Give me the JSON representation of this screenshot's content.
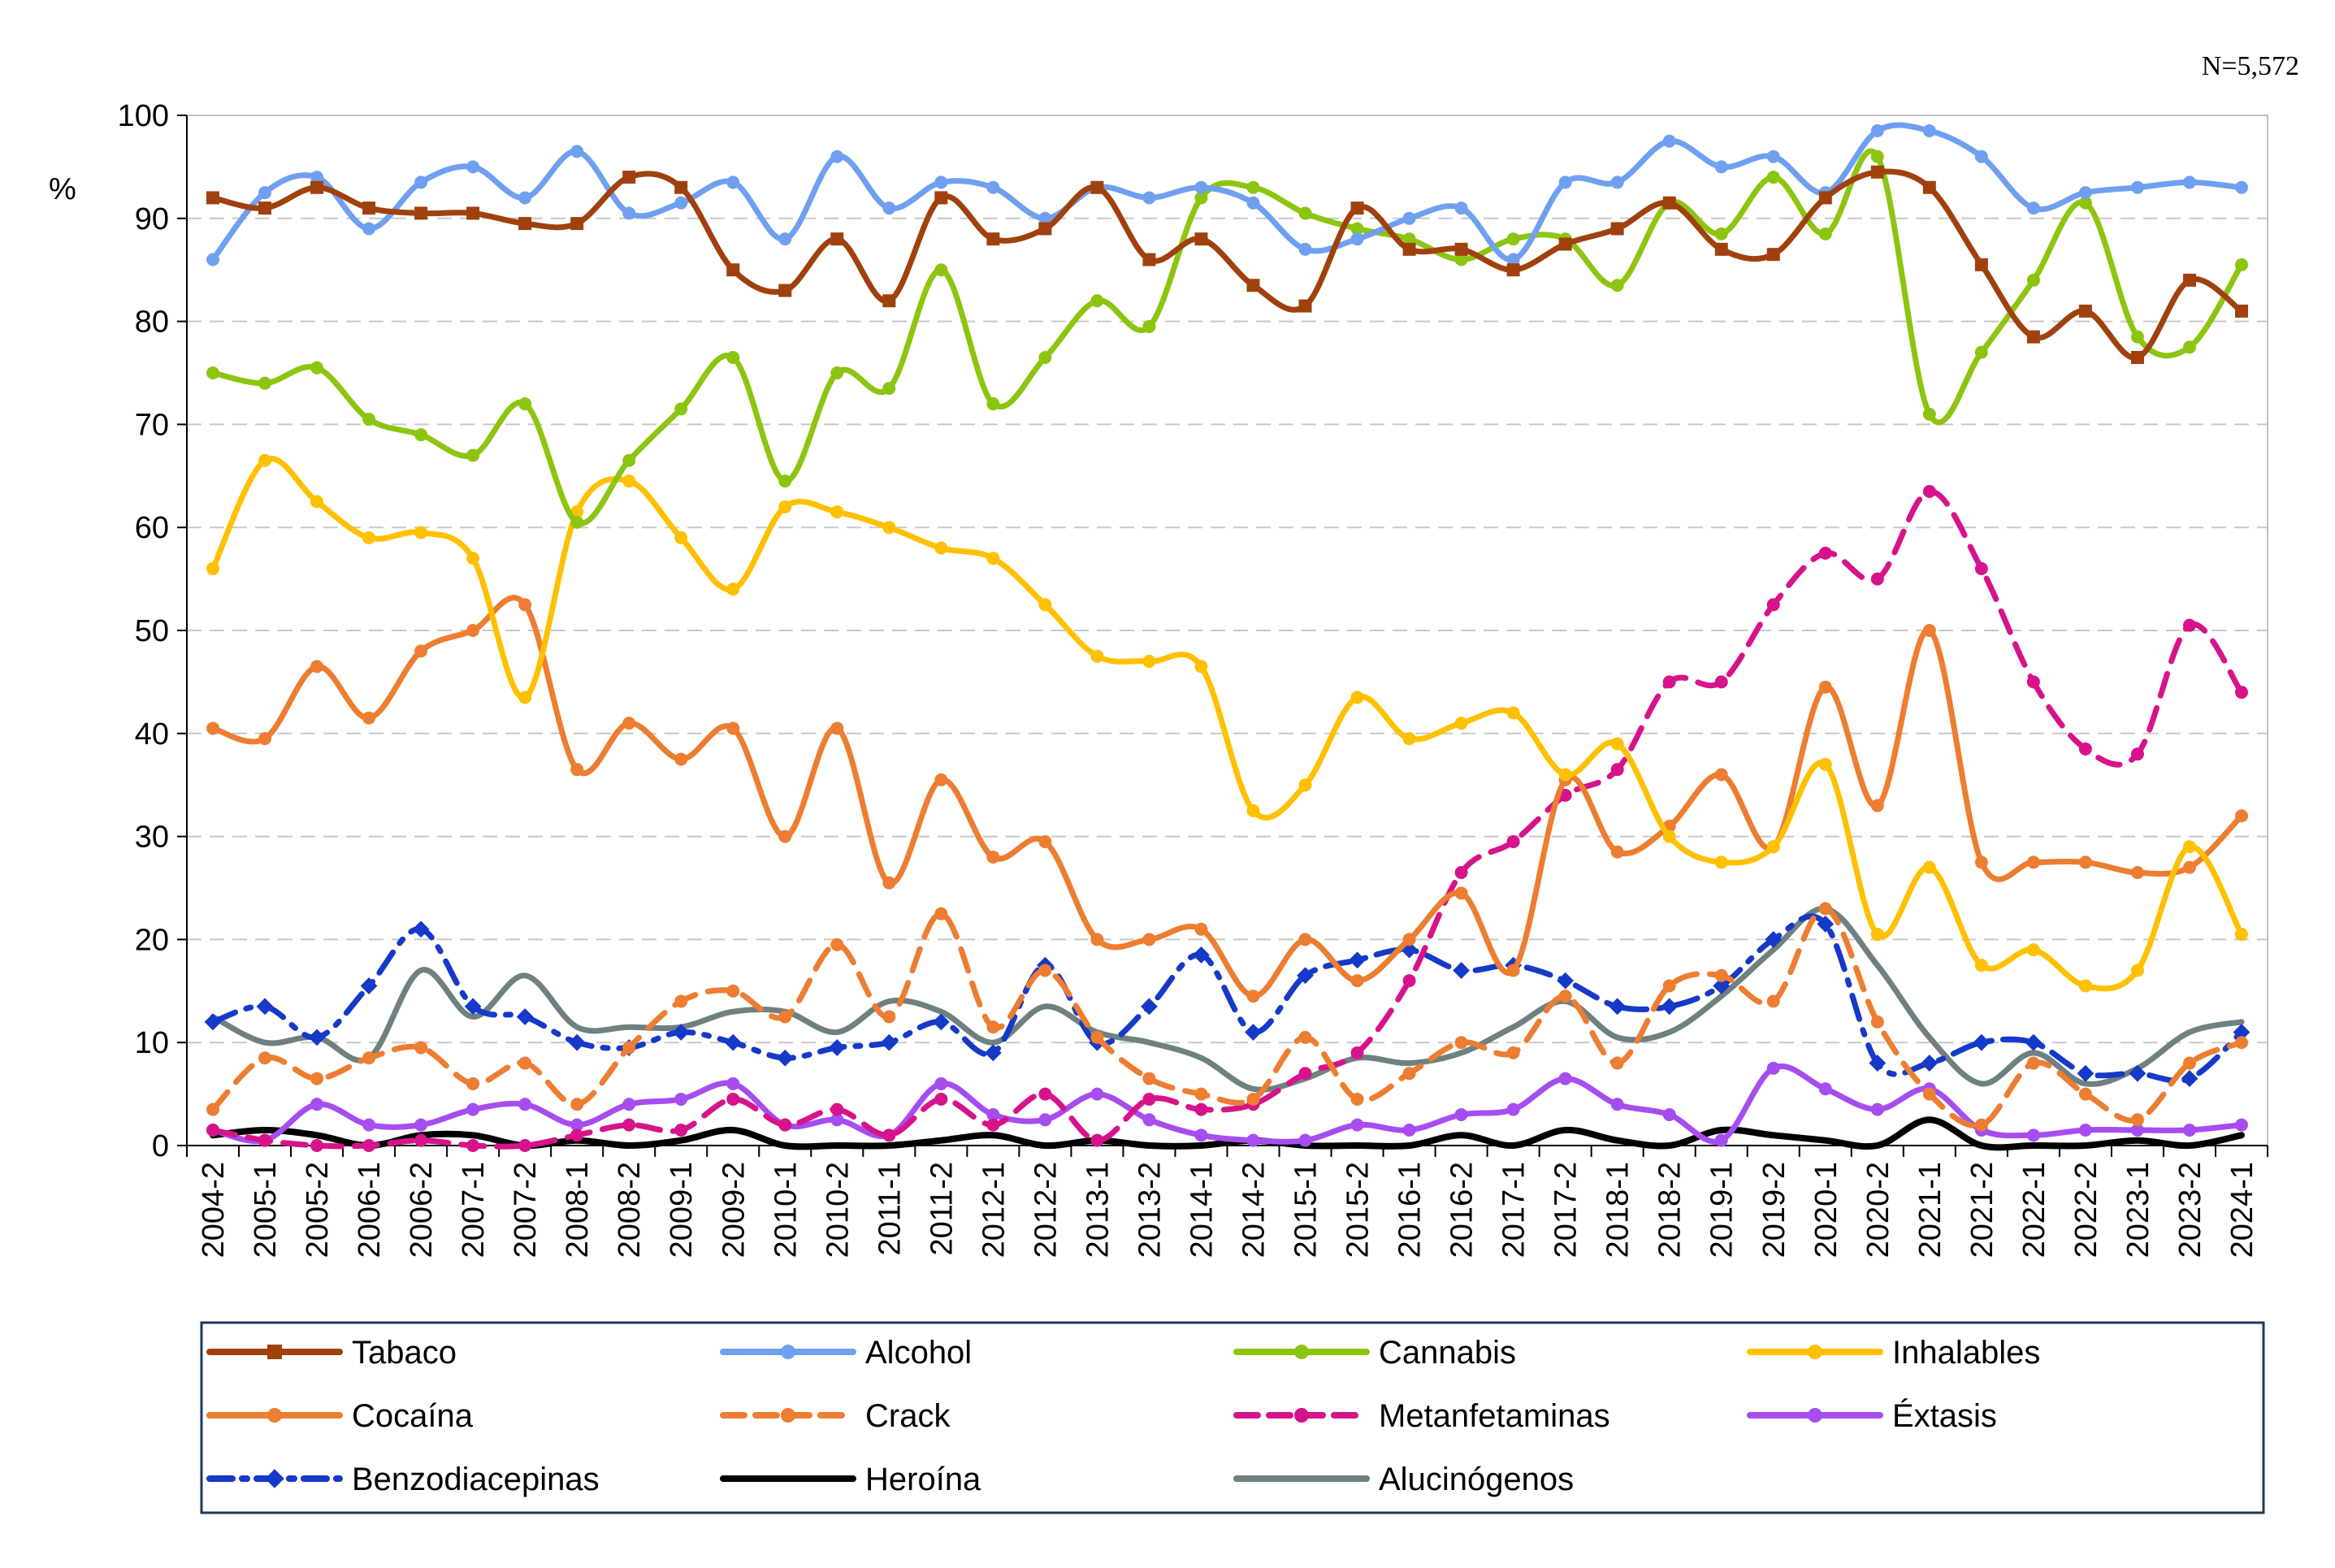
{
  "note": "N=5,572",
  "chart_data": {
    "type": "line",
    "title": "",
    "xlabel": "",
    "ylabel": "%",
    "ylim": [
      0,
      100
    ],
    "yticks": [
      0,
      10,
      20,
      30,
      40,
      50,
      60,
      70,
      80,
      90,
      100
    ],
    "grid": true,
    "legend_position": "bottom",
    "categories": [
      "2004-2",
      "2005-1",
      "2005-2",
      "2006-1",
      "2006-2",
      "2007-1",
      "2007-2",
      "2008-1",
      "2008-2",
      "2009-1",
      "2009-2",
      "2010-1",
      "2010-2",
      "2011-1",
      "2011-2",
      "2012-1",
      "2012-2",
      "2013-1",
      "2013-2",
      "2014-1",
      "2014-2",
      "2015-1",
      "2015-2",
      "2016-1",
      "2016-2",
      "2017-1",
      "2017-2",
      "2018-1",
      "2018-2",
      "2019-1",
      "2019-2",
      "2020-1",
      "2020-2",
      "2021-1",
      "2021-2",
      "2022-1",
      "2022-2",
      "2023-1",
      "2023-2",
      "2024-1"
    ],
    "series": [
      {
        "name": "Tabaco",
        "color": "#A0410D",
        "dash": "solid",
        "marker": "square",
        "values": [
          92,
          91,
          93,
          91,
          90.5,
          90.5,
          89.5,
          89.5,
          94,
          93,
          85,
          83,
          88,
          82,
          92,
          88,
          89,
          93,
          86,
          88,
          83.5,
          81.5,
          91,
          87,
          87,
          85,
          87.5,
          89,
          91.5,
          87,
          86.5,
          92,
          94.5,
          93,
          85.5,
          78.5,
          81,
          76.5,
          84,
          81
        ]
      },
      {
        "name": "Alcohol",
        "color": "#6FA0F0",
        "dash": "solid",
        "marker": "circle",
        "values": [
          86,
          92.5,
          94,
          89,
          93.5,
          95,
          92,
          96.5,
          90.5,
          91.5,
          93.5,
          88,
          96,
          91,
          93.5,
          93,
          90,
          93,
          92,
          93,
          91.5,
          87,
          88,
          90,
          91,
          86,
          93.5,
          93.5,
          97.5,
          95,
          96,
          92.5,
          98.5,
          98.5,
          96,
          91,
          92.5,
          93,
          93.5,
          93
        ]
      },
      {
        "name": "Cannabis",
        "color": "#8CC510",
        "dash": "solid",
        "marker": "circle",
        "values": [
          75,
          74,
          75.5,
          70.5,
          69,
          67,
          72,
          60.5,
          66.5,
          71.5,
          76.5,
          64.5,
          75,
          73.5,
          85,
          72,
          76.5,
          82,
          79.5,
          92,
          93,
          90.5,
          89,
          88,
          86,
          88,
          88,
          83.5,
          91.5,
          88.5,
          94,
          88.5,
          96,
          71,
          77,
          84,
          91.5,
          78.5,
          77.5,
          85.5
        ]
      },
      {
        "name": "Inhalables",
        "color": "#FFC000",
        "dash": "solid",
        "marker": "circle",
        "values": [
          56,
          66.5,
          62.5,
          59,
          59.5,
          57,
          43.5,
          61.5,
          64.5,
          59,
          54,
          62,
          61.5,
          60,
          58,
          57,
          52.5,
          47.5,
          47,
          46.5,
          32.5,
          35,
          43.5,
          39.5,
          41,
          42,
          36,
          39,
          30,
          27.5,
          29,
          37,
          20.5,
          27,
          17.5,
          19,
          15.5,
          17,
          29,
          20.5
        ]
      },
      {
        "name": "Cocaína",
        "color": "#ED7D31",
        "dash": "solid",
        "marker": "circle",
        "values": [
          40.5,
          39.5,
          46.5,
          41.5,
          48,
          50,
          52.5,
          36.5,
          41,
          37.5,
          40.5,
          30,
          40.5,
          25.5,
          35.5,
          28,
          29.5,
          20,
          20,
          21,
          14.5,
          20,
          16,
          20,
          24.5,
          17,
          35.5,
          28.5,
          31,
          36,
          29,
          44.5,
          33,
          50,
          27.5,
          27.5,
          27.5,
          26.5,
          27,
          32
        ]
      },
      {
        "name": "Crack",
        "color": "#ED7D31",
        "dash": "dash",
        "marker": "circle",
        "values": [
          3.5,
          8.5,
          6.5,
          8.5,
          9.5,
          6,
          8,
          4,
          9.5,
          14,
          15,
          12.5,
          19.5,
          12.5,
          22.5,
          11.5,
          17,
          10.5,
          6.5,
          5,
          4.5,
          10.5,
          4.5,
          7,
          10,
          9,
          14.5,
          8,
          15.5,
          16.5,
          14,
          23,
          12,
          5,
          2,
          8,
          5,
          2.5,
          8,
          10
        ]
      },
      {
        "name": "Metanfetaminas",
        "color": "#D6138A",
        "dash": "dash",
        "marker": "circle",
        "values": [
          1.5,
          0.5,
          0,
          0,
          0.5,
          0,
          0,
          1,
          2,
          1.5,
          4.5,
          2,
          3.5,
          1,
          4.5,
          2,
          5,
          0.5,
          4.5,
          3.5,
          4,
          7,
          9,
          16,
          26.5,
          29.5,
          34,
          36.5,
          45,
          45,
          52.5,
          57.5,
          55,
          63.5,
          56,
          45,
          38.5,
          38,
          50.5,
          44
        ]
      },
      {
        "name": "Éxtasis",
        "color": "#A64DF0",
        "dash": "solid",
        "marker": "circle",
        "values": [
          1.5,
          0.5,
          4,
          2,
          2,
          3.5,
          4,
          2,
          4,
          4.5,
          6,
          2,
          2.5,
          1,
          6,
          3,
          2.5,
          5,
          2.5,
          1,
          0.5,
          0.5,
          2,
          1.5,
          3,
          3.5,
          6.5,
          4,
          3,
          0.5,
          7.5,
          5.5,
          3.5,
          5.5,
          1.5,
          1,
          1.5,
          1.5,
          1.5,
          2
        ]
      },
      {
        "name": "Benzodiacepinas",
        "color": "#1539C8",
        "dash": "dashdot",
        "marker": "diamond",
        "values": [
          12,
          13.5,
          10.5,
          15.5,
          21,
          13.5,
          12.5,
          10,
          9.5,
          11,
          10,
          8.5,
          9.5,
          10,
          12,
          9,
          17.5,
          10,
          13.5,
          18.5,
          11,
          16.5,
          18,
          19,
          17,
          17.5,
          16,
          13.5,
          13.5,
          15.5,
          20,
          21.5,
          8,
          8,
          10,
          10,
          7,
          7,
          6.5,
          11
        ]
      },
      {
        "name": "Heroína",
        "color": "#000000",
        "dash": "solid",
        "marker": "none",
        "values": [
          1,
          1.5,
          1,
          0,
          1,
          1,
          0,
          0.5,
          0,
          0.5,
          1.5,
          0,
          0,
          0,
          0.5,
          1,
          0,
          0.5,
          0,
          0,
          0.5,
          0,
          0,
          0,
          1,
          0,
          1.5,
          0.5,
          0,
          1.5,
          1,
          0.5,
          0,
          2.5,
          0,
          0,
          0,
          0.5,
          0,
          1
        ]
      },
      {
        "name": "Alucinógenos",
        "color": "#6E8080",
        "dash": "solid",
        "marker": "none",
        "values": [
          12.5,
          10,
          10.5,
          8.5,
          17,
          12.5,
          16.5,
          11.5,
          11.5,
          11.5,
          13,
          13,
          11,
          14,
          13,
          10,
          13.5,
          11,
          10,
          8.5,
          5.5,
          6.5,
          8.5,
          8,
          9,
          11.5,
          14,
          10.5,
          11,
          14.5,
          19,
          23,
          17.5,
          10.5,
          6,
          9,
          6,
          7.5,
          11,
          12
        ]
      }
    ]
  }
}
